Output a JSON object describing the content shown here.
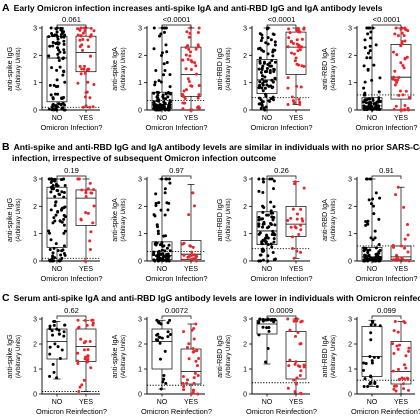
{
  "sections": [
    {
      "letter": "A",
      "title": "Early Omicron infection increases anti-spike IgA and anti-RBD IgG and IgA antibody levels",
      "subtitle": "",
      "xlabel": "Omicron Infection?"
    },
    {
      "letter": "B",
      "title": "Anti-spike and anti-RBD IgG and IgA antibody levels are similar in individuals with no prior SARS-CoV-2",
      "subtitle": "infection, irrespective of subsequent Omicron infection outcome",
      "xlabel": "Omicron Infection?"
    },
    {
      "letter": "C",
      "title": "Serum anti-spike IgA and anti-RBD IgG antibody levels are lower in individuals with Omicron reinfection",
      "subtitle": "",
      "xlabel": "Omicron Reinfection?"
    }
  ],
  "colors": {
    "no": "#000000",
    "yes": "#e8262b"
  },
  "chart_data": [
    {
      "type": "scatter",
      "panel": "A1",
      "ylabel_main": "anti-spike IgG",
      "ylabel_sub": "(Arbitrary Units)",
      "categories": [
        "NO",
        "YES"
      ],
      "ylim": [
        0,
        3
      ],
      "yticks": [
        0,
        1,
        2,
        3
      ],
      "p_value": "0.061",
      "cutoff": 0.1,
      "series": [
        {
          "name": "NO",
          "n": 90,
          "min": 0.0,
          "q1": 0.3,
          "median": 1.9,
          "q3": 2.7,
          "max": 3.0
        },
        {
          "name": "YES",
          "n": 45,
          "min": 0.1,
          "q1": 1.4,
          "median": 2.1,
          "q3": 2.7,
          "max": 3.0
        }
      ]
    },
    {
      "type": "scatter",
      "panel": "A2",
      "ylabel_main": "anti-spike IgA",
      "ylabel_sub": "(Arbitrary Units)",
      "categories": [
        "NO",
        "YES"
      ],
      "ylim": [
        0,
        3
      ],
      "yticks": [
        0,
        1,
        2,
        3
      ],
      "p_value": "<0.0001",
      "cutoff": 0.35,
      "series": [
        {
          "name": "NO",
          "n": 90,
          "min": 0.0,
          "q1": 0.05,
          "median": 0.2,
          "q3": 0.65,
          "max": 3.0
        },
        {
          "name": "YES",
          "n": 45,
          "min": 0.0,
          "q1": 0.5,
          "median": 1.3,
          "q3": 2.3,
          "max": 3.0
        }
      ]
    },
    {
      "type": "scatter",
      "panel": "A3",
      "ylabel_main": "anti-RBD IgG",
      "ylabel_sub": "(Arbitrary Units)",
      "categories": [
        "NO",
        "YES"
      ],
      "ylim": [
        0,
        3
      ],
      "yticks": [
        0,
        1,
        2,
        3
      ],
      "p_value": "<0.0001",
      "cutoff": 0.45,
      "series": [
        {
          "name": "NO",
          "n": 90,
          "min": 0.0,
          "q1": 0.6,
          "median": 1.1,
          "q3": 1.85,
          "max": 3.0
        },
        {
          "name": "YES",
          "n": 45,
          "min": 0.2,
          "q1": 1.3,
          "median": 2.3,
          "q3": 2.85,
          "max": 3.0
        }
      ]
    },
    {
      "type": "scatter",
      "panel": "A4",
      "ylabel_main": "anti-RBD IgA",
      "ylabel_sub": "(Arbitrary Units)",
      "categories": [
        "NO",
        "YES"
      ],
      "ylim": [
        0,
        3
      ],
      "yticks": [
        0,
        1,
        2,
        3
      ],
      "p_value": "<0.0001",
      "cutoff": 0.55,
      "series": [
        {
          "name": "NO",
          "n": 90,
          "min": 0.0,
          "q1": 0.05,
          "median": 0.15,
          "q3": 0.45,
          "max": 3.0
        },
        {
          "name": "YES",
          "n": 45,
          "min": 0.0,
          "q1": 0.4,
          "median": 1.2,
          "q3": 2.4,
          "max": 3.0
        }
      ]
    },
    {
      "type": "scatter",
      "panel": "B1",
      "ylabel_main": "anti-spike IgG",
      "ylabel_sub": "(Arbitrary Units)",
      "categories": [
        "NO",
        "YES"
      ],
      "ylim": [
        0,
        3
      ],
      "yticks": [
        0,
        1,
        2,
        3
      ],
      "p_value": "0.19",
      "cutoff": 0.1,
      "series": [
        {
          "name": "NO",
          "n": 80,
          "min": 0.0,
          "q1": 0.5,
          "median": 2.3,
          "q3": 2.7,
          "max": 3.0
        },
        {
          "name": "YES",
          "n": 22,
          "min": 0.0,
          "q1": 1.3,
          "median": 2.3,
          "q3": 2.6,
          "max": 3.0
        }
      ]
    },
    {
      "type": "scatter",
      "panel": "B2",
      "ylabel_main": "anti-spike IgA",
      "ylabel_sub": "(Arbitrary Units)",
      "categories": [
        "NO",
        "YES"
      ],
      "ylim": [
        0,
        3
      ],
      "yticks": [
        0,
        1,
        2,
        3
      ],
      "p_value": "0.97",
      "cutoff": 0.35,
      "series": [
        {
          "name": "NO",
          "n": 80,
          "min": 0.0,
          "q1": 0.05,
          "median": 0.2,
          "q3": 0.7,
          "max": 3.0
        },
        {
          "name": "YES",
          "n": 22,
          "min": 0.0,
          "q1": 0.05,
          "median": 0.25,
          "q3": 0.75,
          "max": 2.8
        }
      ]
    },
    {
      "type": "scatter",
      "panel": "B3",
      "ylabel_main": "anti-RBD IgG",
      "ylabel_sub": "(Arbitrary Units)",
      "categories": [
        "NO",
        "YES"
      ],
      "ylim": [
        0,
        3
      ],
      "yticks": [
        0,
        1,
        2,
        3
      ],
      "p_value": "0.26",
      "cutoff": 0.45,
      "series": [
        {
          "name": "NO",
          "n": 80,
          "min": 0.0,
          "q1": 0.6,
          "median": 1.1,
          "q3": 1.8,
          "max": 3.0
        },
        {
          "name": "YES",
          "n": 22,
          "min": 0.1,
          "q1": 0.9,
          "median": 1.35,
          "q3": 2.0,
          "max": 2.9
        }
      ]
    },
    {
      "type": "scatter",
      "panel": "B4",
      "ylabel_main": "anti-RBD IgA",
      "ylabel_sub": "(Arbitrary Units)",
      "categories": [
        "NO",
        "YES"
      ],
      "ylim": [
        0,
        3
      ],
      "yticks": [
        0,
        1,
        2,
        3
      ],
      "p_value": "0.91",
      "cutoff": 0.55,
      "series": [
        {
          "name": "NO",
          "n": 80,
          "min": 0.0,
          "q1": 0.05,
          "median": 0.15,
          "q3": 0.5,
          "max": 3.0
        },
        {
          "name": "YES",
          "n": 22,
          "min": 0.0,
          "q1": 0.05,
          "median": 0.15,
          "q3": 0.55,
          "max": 2.7
        }
      ]
    },
    {
      "type": "scatter",
      "panel": "C1",
      "ylabel_main": "anti-spike IgG",
      "ylabel_sub": "(Arbitrary Units)",
      "categories": [
        "NO",
        "YES"
      ],
      "ylim": [
        0,
        3
      ],
      "yticks": [
        0,
        1,
        2,
        3
      ],
      "p_value": "0.62",
      "cutoff": 0.1,
      "series": [
        {
          "name": "NO",
          "n": 25,
          "min": 0.6,
          "q1": 1.4,
          "median": 2.1,
          "q3": 2.6,
          "max": 2.9
        },
        {
          "name": "YES",
          "n": 30,
          "min": 0.1,
          "q1": 1.3,
          "median": 1.9,
          "q3": 2.6,
          "max": 2.95
        }
      ]
    },
    {
      "type": "scatter",
      "panel": "C2",
      "ylabel_main": "anti-spike IgA",
      "ylabel_sub": "(Arbitrary Units)",
      "categories": [
        "NO",
        "YES"
      ],
      "ylim": [
        0,
        3
      ],
      "yticks": [
        0,
        1,
        2,
        3
      ],
      "p_value": "0.0072",
      "cutoff": 0.35,
      "series": [
        {
          "name": "NO",
          "n": 25,
          "min": 0.2,
          "q1": 1.0,
          "median": 2.1,
          "q3": 2.6,
          "max": 2.95
        },
        {
          "name": "YES",
          "n": 30,
          "min": 0.0,
          "q1": 0.4,
          "median": 0.9,
          "q3": 1.8,
          "max": 2.8
        }
      ]
    },
    {
      "type": "scatter",
      "panel": "C3",
      "ylabel_main": "anti-RBD IgG",
      "ylabel_sub": "(Arbitrary Units)",
      "categories": [
        "NO",
        "YES"
      ],
      "ylim": [
        0,
        3
      ],
      "yticks": [
        0,
        1,
        2,
        3
      ],
      "p_value": "0.0009",
      "cutoff": 0.45,
      "series": [
        {
          "name": "NO",
          "n": 25,
          "min": 1.2,
          "q1": 2.4,
          "median": 2.8,
          "q3": 2.95,
          "max": 3.0
        },
        {
          "name": "YES",
          "n": 30,
          "min": 0.0,
          "q1": 0.6,
          "median": 1.3,
          "q3": 2.5,
          "max": 3.0
        }
      ]
    },
    {
      "type": "scatter",
      "panel": "C4",
      "ylabel_main": "anti-RBD IgA",
      "ylabel_sub": "(Arbitrary Units)",
      "categories": [
        "NO",
        "YES"
      ],
      "ylim": [
        0,
        3
      ],
      "yticks": [
        0,
        1,
        2,
        3
      ],
      "p_value": "0.099",
      "cutoff": 0.55,
      "series": [
        {
          "name": "NO",
          "n": 25,
          "min": 0.3,
          "q1": 0.7,
          "median": 1.5,
          "q3": 2.7,
          "max": 2.95
        },
        {
          "name": "YES",
          "n": 30,
          "min": 0.0,
          "q1": 0.4,
          "median": 0.9,
          "q3": 2.1,
          "max": 2.9
        }
      ]
    }
  ]
}
